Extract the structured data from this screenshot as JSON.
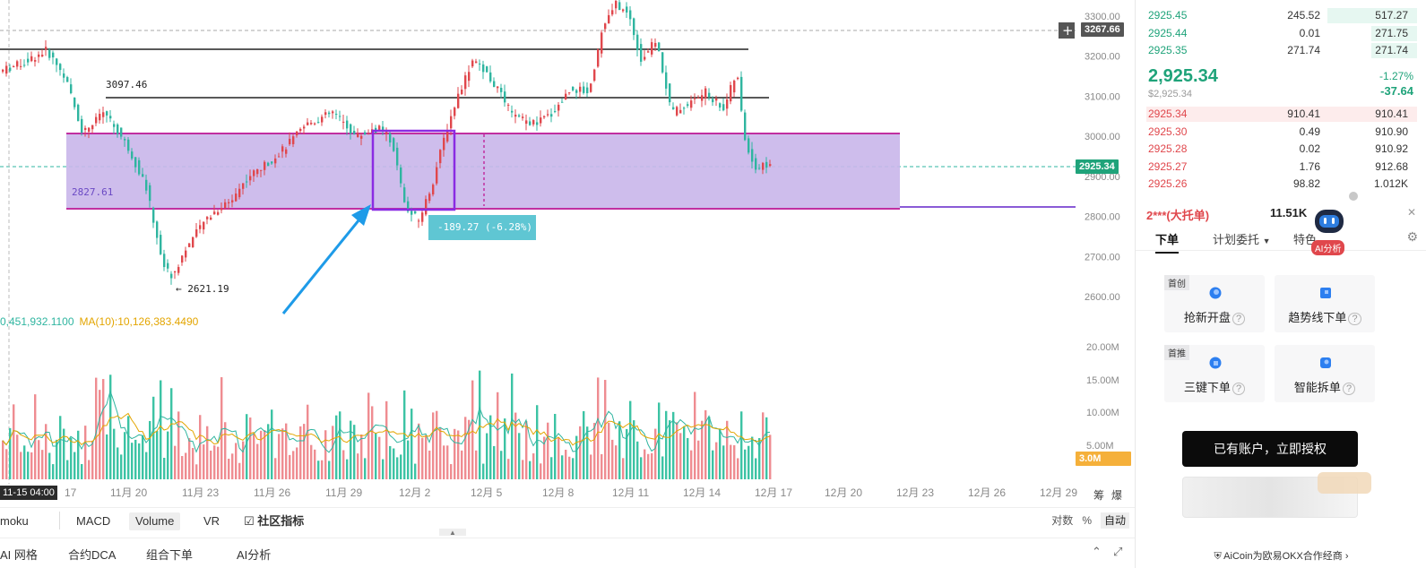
{
  "chart": {
    "y_axis_labels": [
      "3300.00",
      "3200.00",
      "3100.00",
      "3000.00",
      "2900.00",
      "2800.00",
      "2700.00",
      "2600.00"
    ],
    "volume_axis_labels": [
      "20.00M",
      "15.00M",
      "10.00M",
      "5.00M"
    ],
    "x_axis_labels": [
      "17",
      "11月 20",
      "11月 23",
      "11月 26",
      "11月 29",
      "12月 2",
      "12月 5",
      "12月 8",
      "12月 11",
      "12月 14",
      "12月 17",
      "12月 20",
      "12月 23",
      "12月 26",
      "12月 29"
    ],
    "crosshair_price": "3267.66",
    "last_price_tag": "2925.34",
    "volume_tag": "3.0M",
    "date_badge": "11-15 04:00",
    "annotations": {
      "high_marker": "3097.46",
      "low_marker": "← 2621.19",
      "zone_price": "2827.61",
      "measure": "-189.27 (-6.28%)"
    },
    "ma_legend": {
      "v1": "0,451,932.1100",
      "v2": "MA(10):10,126,383.4490"
    },
    "axis_controls": [
      "筹",
      "爆"
    ],
    "colors": {
      "up": "#e0474c",
      "down": "#2fb5a0",
      "zone": "#b9a6e3",
      "zone_border": "#c12fa0",
      "accent": "#8a2be2"
    }
  },
  "indicator_bar": {
    "items": [
      "moku",
      "MACD",
      "Volume",
      "VR",
      "社区指标"
    ],
    "selected": "Volume",
    "right": {
      "log": "对数",
      "pct": "%",
      "auto": "自动"
    }
  },
  "bottom_bar": {
    "items": [
      "AI 网格",
      "合约DCA",
      "组合下单",
      "AI分析"
    ]
  },
  "panel": {
    "asks": [
      {
        "price": "2925.45",
        "qty": "245.52",
        "total": "517.27",
        "fill": 0.33
      },
      {
        "price": "2925.44",
        "qty": "0.01",
        "total": "271.75",
        "fill": 0.17
      },
      {
        "price": "2925.35",
        "qty": "271.74",
        "total": "271.74",
        "fill": 0.17
      }
    ],
    "last_price": "2,925.34",
    "last_usd": "$2,925.34",
    "change_pct": "-1.27%",
    "change_abs": "-37.64",
    "bids": [
      {
        "price": "2925.34",
        "qty": "910.41",
        "total": "910.41",
        "fill": 1.0
      },
      {
        "price": "2925.30",
        "qty": "0.49",
        "total": "910.90",
        "fill": 0
      },
      {
        "price": "2925.28",
        "qty": "0.02",
        "total": "910.92",
        "fill": 0
      },
      {
        "price": "2925.27",
        "qty": "1.76",
        "total": "912.68",
        "fill": 0
      },
      {
        "price": "2925.26",
        "qty": "98.82",
        "total": "1.012K",
        "fill": 0
      }
    ],
    "big_order": {
      "who": "2***(大托单)",
      "amount": "11.51K"
    },
    "ai_badge": "AI分析",
    "tabs": [
      "下单",
      "计划委托",
      "特色"
    ],
    "cards": [
      {
        "tag": "首创",
        "label": "抢新开盘"
      },
      {
        "tag": "",
        "label": "趋势线下单"
      },
      {
        "tag": "首推",
        "label": "三键下单"
      },
      {
        "tag": "",
        "label": "智能拆单"
      }
    ],
    "auth_button": "已有账户，立即授权",
    "footer": "AiCoin为欧易OKX合作经商 ›"
  }
}
